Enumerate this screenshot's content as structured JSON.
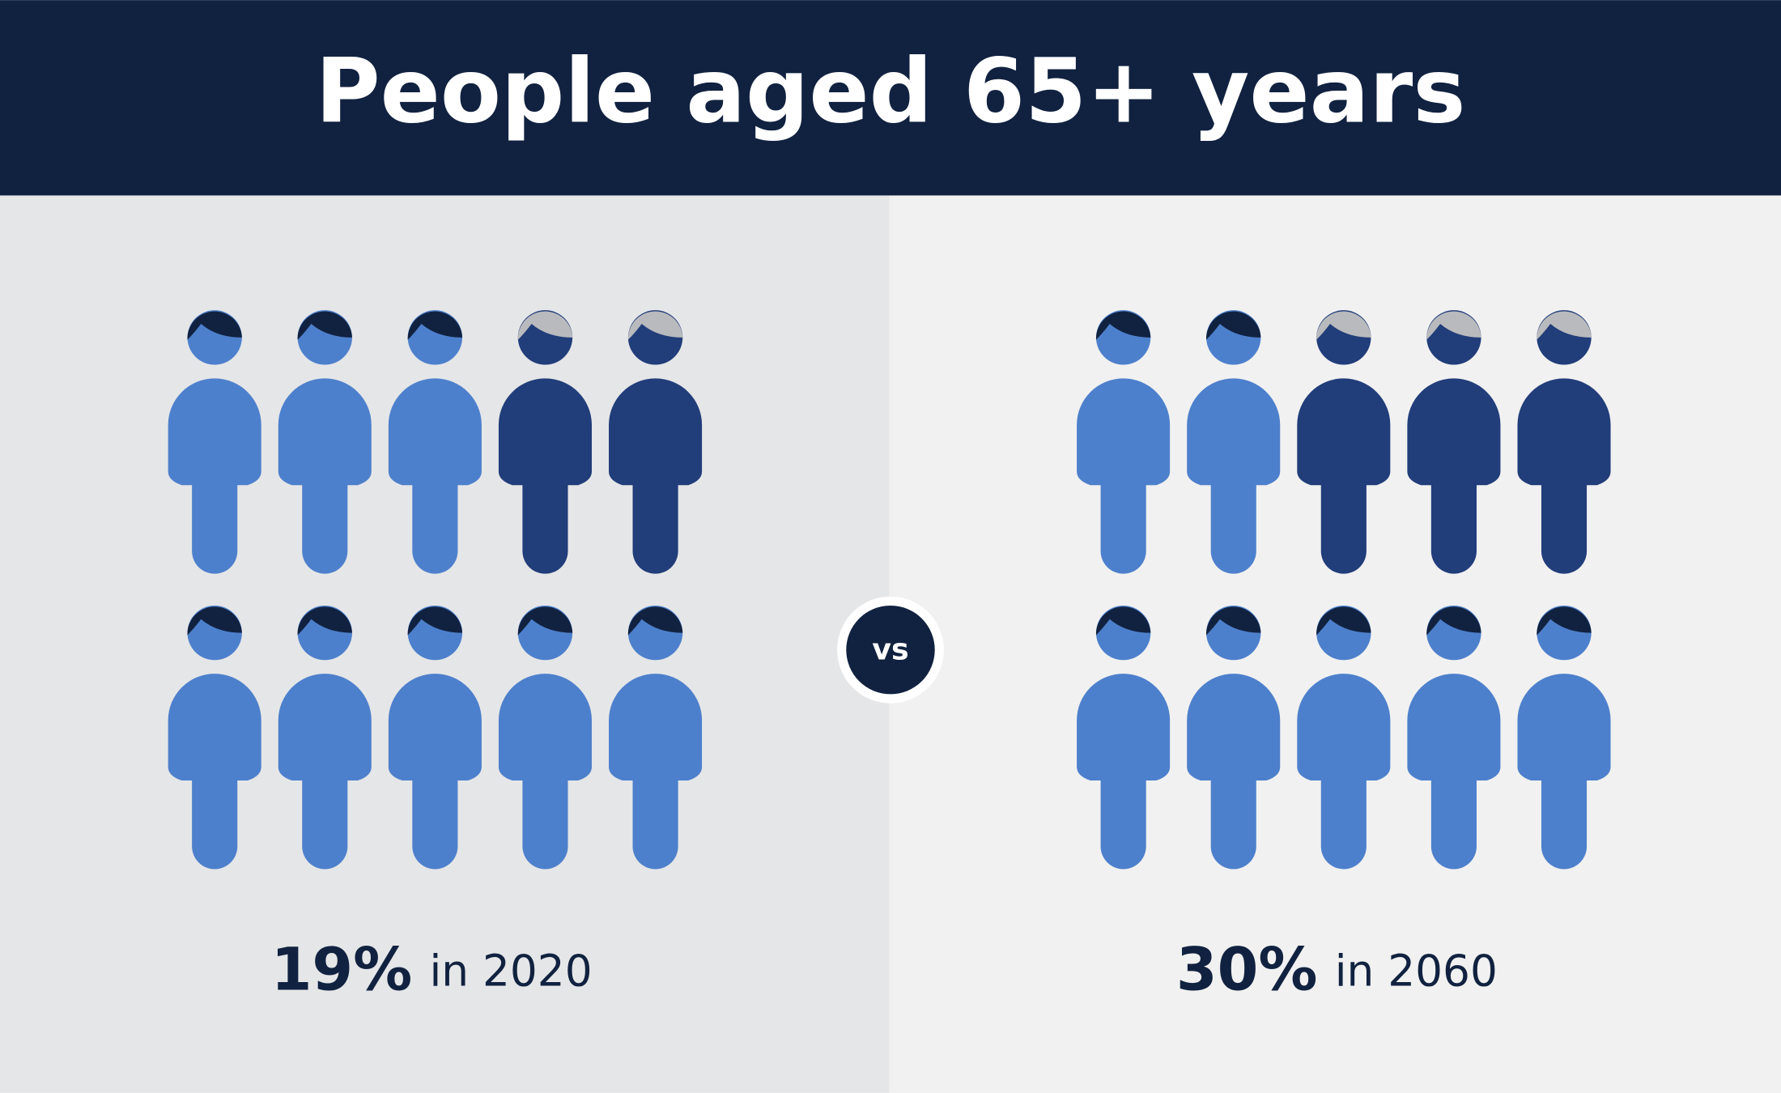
{
  "title": "People aged 65+ years",
  "panels": [
    {
      "percent": "19%",
      "caption": "in 2020"
    },
    {
      "percent": "30%",
      "caption": "in 2060"
    }
  ],
  "separator": "vs"
}
